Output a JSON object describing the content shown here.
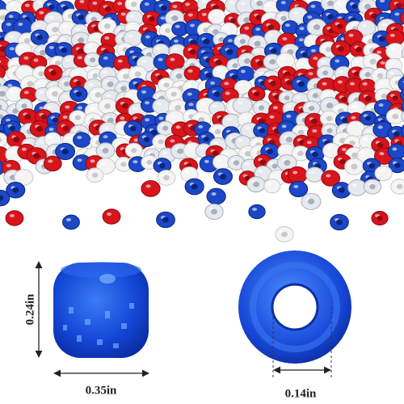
{
  "dimensions": {
    "height": "0.24in",
    "length": "0.35in",
    "hole": "0.14in"
  }
}
